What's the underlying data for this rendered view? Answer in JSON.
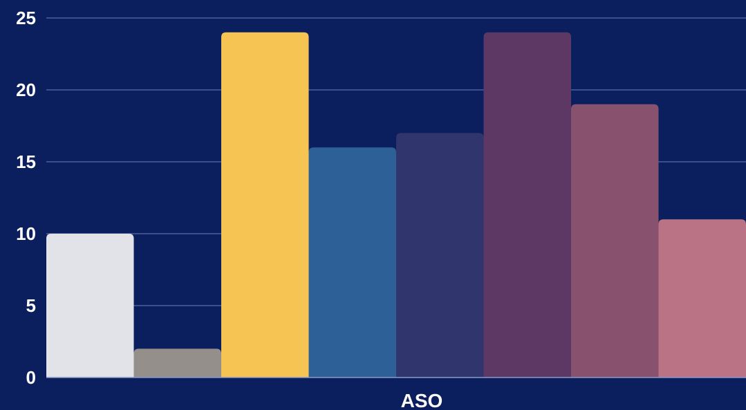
{
  "chart_data": {
    "type": "bar",
    "categories": [
      "ASO"
    ],
    "series": [
      {
        "values": [
          10
        ],
        "color": "#e1e3e8"
      },
      {
        "values": [
          2
        ],
        "color": "#948f8a"
      },
      {
        "values": [
          24
        ],
        "color": "#f6c453"
      },
      {
        "values": [
          16
        ],
        "color": "#2e6098"
      },
      {
        "values": [
          17
        ],
        "color": "#30356e"
      },
      {
        "values": [
          24
        ],
        "color": "#5e3865"
      },
      {
        "values": [
          19
        ],
        "color": "#88526f"
      },
      {
        "values": [
          11
        ],
        "color": "#ba7385"
      }
    ],
    "ylim": [
      0,
      25
    ],
    "yticks": [
      "0",
      "5",
      "10",
      "15",
      "20",
      "25"
    ],
    "grid": true,
    "background": "#0b1f5f"
  }
}
